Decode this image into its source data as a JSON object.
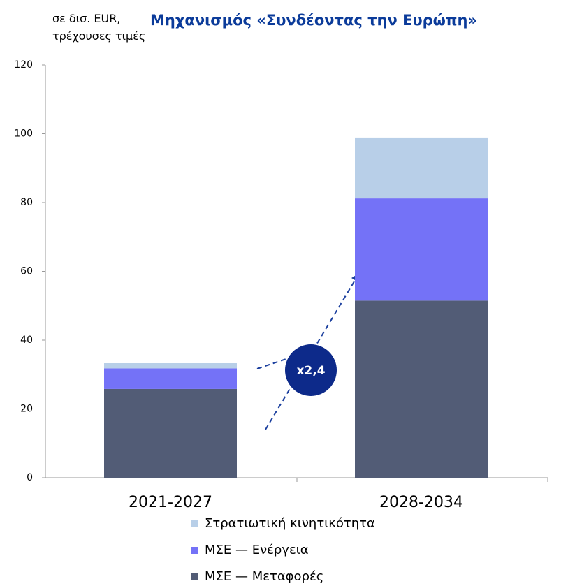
{
  "chart_data": {
    "type": "stacked_bar",
    "title": "Μηχανισμός «Συνδέοντας την Ευρώπη»",
    "ylabel": "σε δισ. EUR, τρέχουσες τιμές",
    "categories": [
      "2021-2027",
      "2028-2034"
    ],
    "series": [
      {
        "name": "ΜΣΕ — Μεταφορές",
        "color": "#525c76",
        "values": [
          25.8,
          51.5
        ]
      },
      {
        "name": "ΜΣΕ — Ενέργεια",
        "color": "#7472f7",
        "values": [
          6,
          29.7
        ]
      },
      {
        "name": "Στρατιωτική κινητικότητα",
        "color": "#b8cfe8",
        "values": [
          1.5,
          17.7
        ]
      }
    ],
    "annotation": "x2,4",
    "ylim": [
      0,
      120
    ],
    "yticks": [
      0,
      20,
      40,
      60,
      80,
      100,
      120
    ]
  }
}
